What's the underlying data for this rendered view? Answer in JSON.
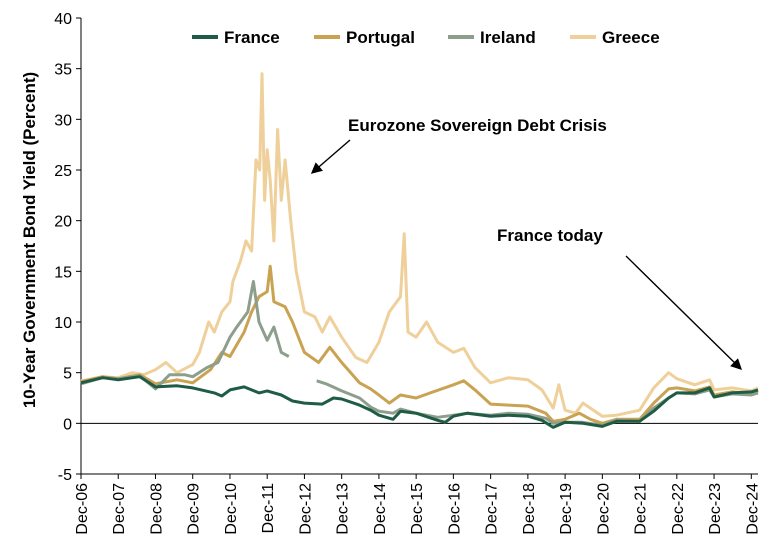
{
  "chart_data": {
    "type": "line",
    "title": "",
    "xlabel": "",
    "ylabel": "10-Year Government Bond Yield (Percent)",
    "ylim": [
      -5,
      40
    ],
    "yticks": [
      -5,
      0,
      5,
      10,
      15,
      20,
      25,
      30,
      35,
      40
    ],
    "xlim": [
      2006.92,
      2025.1
    ],
    "xticks": [
      {
        "label": "Dec-06",
        "x": 2006.92
      },
      {
        "label": "Dec-07",
        "x": 2007.92
      },
      {
        "label": "Dec-08",
        "x": 2008.92
      },
      {
        "label": "Dec-09",
        "x": 2009.92
      },
      {
        "label": "Dec-10",
        "x": 2010.92
      },
      {
        "label": "Dec-11",
        "x": 2011.92
      },
      {
        "label": "Dec-12",
        "x": 2012.92
      },
      {
        "label": "Dec-13",
        "x": 2013.92
      },
      {
        "label": "Dec-14",
        "x": 2014.92
      },
      {
        "label": "Dec-15",
        "x": 2015.92
      },
      {
        "label": "Dec-16",
        "x": 2016.92
      },
      {
        "label": "Dec-17",
        "x": 2017.92
      },
      {
        "label": "Dec-18",
        "x": 2018.92
      },
      {
        "label": "Dec-19",
        "x": 2019.92
      },
      {
        "label": "Dec-20",
        "x": 2020.92
      },
      {
        "label": "Dec-21",
        "x": 2021.92
      },
      {
        "label": "Dec-22",
        "x": 2022.92
      },
      {
        "label": "Dec-23",
        "x": 2023.92
      },
      {
        "label": "Dec-24",
        "x": 2024.92
      }
    ],
    "grid": false,
    "legend_position": "top-center",
    "series": [
      {
        "name": "France",
        "color": "#1f5c45",
        "points": [
          [
            2006.92,
            4.0
          ],
          [
            2007.5,
            4.5
          ],
          [
            2007.92,
            4.3
          ],
          [
            2008.5,
            4.6
          ],
          [
            2008.92,
            3.6
          ],
          [
            2009.5,
            3.7
          ],
          [
            2009.92,
            3.5
          ],
          [
            2010.5,
            3.0
          ],
          [
            2010.7,
            2.7
          ],
          [
            2010.92,
            3.3
          ],
          [
            2011.3,
            3.6
          ],
          [
            2011.7,
            3.0
          ],
          [
            2011.92,
            3.2
          ],
          [
            2012.3,
            2.8
          ],
          [
            2012.6,
            2.2
          ],
          [
            2012.92,
            2.0
          ],
          [
            2013.4,
            1.9
          ],
          [
            2013.7,
            2.5
          ],
          [
            2013.92,
            2.4
          ],
          [
            2014.4,
            1.8
          ],
          [
            2014.7,
            1.3
          ],
          [
            2014.92,
            0.8
          ],
          [
            2015.3,
            0.4
          ],
          [
            2015.5,
            1.2
          ],
          [
            2015.92,
            1.0
          ],
          [
            2016.5,
            0.3
          ],
          [
            2016.7,
            0.1
          ],
          [
            2016.92,
            0.7
          ],
          [
            2017.3,
            1.0
          ],
          [
            2017.92,
            0.7
          ],
          [
            2018.4,
            0.8
          ],
          [
            2018.92,
            0.7
          ],
          [
            2019.3,
            0.3
          ],
          [
            2019.6,
            -0.4
          ],
          [
            2019.92,
            0.1
          ],
          [
            2020.4,
            0.0
          ],
          [
            2020.92,
            -0.3
          ],
          [
            2021.3,
            0.2
          ],
          [
            2021.92,
            0.2
          ],
          [
            2022.3,
            1.2
          ],
          [
            2022.7,
            2.5
          ],
          [
            2022.92,
            3.0
          ],
          [
            2023.4,
            3.0
          ],
          [
            2023.8,
            3.5
          ],
          [
            2023.92,
            2.6
          ],
          [
            2024.4,
            3.0
          ],
          [
            2024.92,
            3.1
          ],
          [
            2025.1,
            3.3
          ]
        ]
      },
      {
        "name": "Portugal",
        "color": "#c9a252",
        "points": [
          [
            2006.92,
            4.1
          ],
          [
            2007.5,
            4.6
          ],
          [
            2007.92,
            4.4
          ],
          [
            2008.5,
            4.8
          ],
          [
            2008.92,
            3.9
          ],
          [
            2009.5,
            4.3
          ],
          [
            2009.92,
            4.0
          ],
          [
            2010.4,
            5.3
          ],
          [
            2010.7,
            7.0
          ],
          [
            2010.92,
            6.6
          ],
          [
            2011.3,
            9.0
          ],
          [
            2011.5,
            11.0
          ],
          [
            2011.7,
            12.5
          ],
          [
            2011.92,
            13.0
          ],
          [
            2012.0,
            15.5
          ],
          [
            2012.1,
            12.0
          ],
          [
            2012.4,
            11.5
          ],
          [
            2012.6,
            10.0
          ],
          [
            2012.92,
            7.0
          ],
          [
            2013.3,
            6.0
          ],
          [
            2013.6,
            7.5
          ],
          [
            2013.92,
            6.0
          ],
          [
            2014.4,
            4.0
          ],
          [
            2014.7,
            3.4
          ],
          [
            2014.92,
            2.8
          ],
          [
            2015.2,
            2.0
          ],
          [
            2015.5,
            2.8
          ],
          [
            2015.92,
            2.5
          ],
          [
            2016.3,
            3.0
          ],
          [
            2016.92,
            3.8
          ],
          [
            2017.2,
            4.2
          ],
          [
            2017.5,
            3.3
          ],
          [
            2017.92,
            1.9
          ],
          [
            2018.4,
            1.8
          ],
          [
            2018.92,
            1.7
          ],
          [
            2019.4,
            1.0
          ],
          [
            2019.6,
            0.2
          ],
          [
            2019.92,
            0.4
          ],
          [
            2020.3,
            1.0
          ],
          [
            2020.6,
            0.4
          ],
          [
            2020.92,
            0.0
          ],
          [
            2021.3,
            0.4
          ],
          [
            2021.92,
            0.4
          ],
          [
            2022.3,
            2.0
          ],
          [
            2022.7,
            3.4
          ],
          [
            2022.92,
            3.5
          ],
          [
            2023.4,
            3.2
          ],
          [
            2023.8,
            3.6
          ],
          [
            2023.92,
            2.8
          ],
          [
            2024.4,
            3.1
          ],
          [
            2024.92,
            2.9
          ],
          [
            2025.1,
            3.2
          ]
        ]
      },
      {
        "name": "Ireland",
        "color": "#8d9e8c",
        "points": [
          [
            2006.92,
            3.9
          ],
          [
            2007.5,
            4.5
          ],
          [
            2007.92,
            4.4
          ],
          [
            2008.5,
            4.7
          ],
          [
            2008.92,
            3.4
          ],
          [
            2009.3,
            4.8
          ],
          [
            2009.7,
            4.8
          ],
          [
            2009.92,
            4.6
          ],
          [
            2010.3,
            5.5
          ],
          [
            2010.6,
            6.0
          ],
          [
            2010.92,
            8.5
          ],
          [
            2011.1,
            9.5
          ],
          [
            2011.4,
            11.0
          ],
          [
            2011.55,
            14.0
          ],
          [
            2011.7,
            10.0
          ],
          [
            2011.92,
            8.2
          ],
          [
            2012.1,
            9.5
          ],
          [
            2012.3,
            7.0
          ],
          [
            2012.5,
            6.6
          ],
          null,
          [
            2013.25,
            4.2
          ],
          [
            2013.5,
            3.9
          ],
          [
            2013.92,
            3.2
          ],
          [
            2014.4,
            2.5
          ],
          [
            2014.7,
            1.6
          ],
          [
            2014.92,
            1.2
          ],
          [
            2015.3,
            1.0
          ],
          [
            2015.5,
            1.4
          ],
          [
            2015.92,
            1.0
          ],
          [
            2016.5,
            0.6
          ],
          [
            2016.92,
            0.8
          ],
          [
            2017.3,
            1.0
          ],
          [
            2017.92,
            0.8
          ],
          [
            2018.4,
            1.0
          ],
          [
            2018.92,
            0.9
          ],
          [
            2019.4,
            0.5
          ],
          [
            2019.6,
            0.0
          ],
          [
            2019.92,
            0.1
          ],
          [
            2020.4,
            0.1
          ],
          [
            2020.92,
            -0.2
          ],
          [
            2021.3,
            0.3
          ],
          [
            2021.92,
            0.2
          ],
          [
            2022.3,
            1.5
          ],
          [
            2022.7,
            2.5
          ],
          [
            2022.92,
            3.0
          ],
          [
            2023.4,
            2.9
          ],
          [
            2023.8,
            3.3
          ],
          [
            2023.92,
            2.6
          ],
          [
            2024.4,
            2.9
          ],
          [
            2024.92,
            2.8
          ],
          [
            2025.1,
            3.0
          ]
        ]
      },
      {
        "name": "Greece",
        "color": "#efd09a",
        "points": [
          [
            2006.92,
            4.2
          ],
          [
            2007.5,
            4.6
          ],
          [
            2007.92,
            4.5
          ],
          [
            2008.3,
            5.0
          ],
          [
            2008.6,
            4.8
          ],
          [
            2008.92,
            5.3
          ],
          [
            2009.2,
            6.0
          ],
          [
            2009.5,
            5.0
          ],
          [
            2009.92,
            5.8
          ],
          [
            2010.1,
            7.0
          ],
          [
            2010.35,
            10.0
          ],
          [
            2010.5,
            9.0
          ],
          [
            2010.7,
            11.0
          ],
          [
            2010.92,
            12.0
          ],
          [
            2011.0,
            14.0
          ],
          [
            2011.2,
            16.0
          ],
          [
            2011.35,
            18.0
          ],
          [
            2011.5,
            17.0
          ],
          [
            2011.62,
            26.0
          ],
          [
            2011.72,
            25.0
          ],
          [
            2011.78,
            34.5
          ],
          [
            2011.85,
            22.0
          ],
          [
            2011.92,
            27.0
          ],
          [
            2012.0,
            24.0
          ],
          [
            2012.1,
            18.0
          ],
          [
            2012.2,
            29.0
          ],
          [
            2012.3,
            22.0
          ],
          [
            2012.4,
            26.0
          ],
          [
            2012.55,
            20.0
          ],
          [
            2012.7,
            15.0
          ],
          [
            2012.92,
            11.0
          ],
          [
            2013.2,
            10.5
          ],
          [
            2013.4,
            9.0
          ],
          [
            2013.6,
            10.5
          ],
          [
            2013.92,
            8.5
          ],
          [
            2014.3,
            6.5
          ],
          [
            2014.6,
            6.0
          ],
          [
            2014.92,
            8.0
          ],
          [
            2015.2,
            11.0
          ],
          [
            2015.5,
            12.5
          ],
          [
            2015.6,
            18.7
          ],
          [
            2015.7,
            9.0
          ],
          [
            2015.92,
            8.5
          ],
          [
            2016.2,
            10.0
          ],
          [
            2016.5,
            8.0
          ],
          [
            2016.92,
            7.0
          ],
          [
            2017.2,
            7.4
          ],
          [
            2017.5,
            5.5
          ],
          [
            2017.92,
            4.0
          ],
          [
            2018.4,
            4.5
          ],
          [
            2018.92,
            4.3
          ],
          [
            2019.3,
            3.3
          ],
          [
            2019.6,
            1.5
          ],
          [
            2019.75,
            3.8
          ],
          [
            2019.92,
            1.3
          ],
          [
            2020.2,
            1.0
          ],
          [
            2020.4,
            2.0
          ],
          [
            2020.92,
            0.7
          ],
          [
            2021.3,
            0.8
          ],
          [
            2021.92,
            1.3
          ],
          [
            2022.3,
            3.5
          ],
          [
            2022.7,
            5.0
          ],
          [
            2022.92,
            4.4
          ],
          [
            2023.4,
            3.8
          ],
          [
            2023.8,
            4.3
          ],
          [
            2023.92,
            3.3
          ],
          [
            2024.4,
            3.5
          ],
          [
            2024.92,
            3.2
          ],
          [
            2025.1,
            3.5
          ]
        ]
      }
    ],
    "annotations": [
      {
        "text": "Eurozone Sovereign Debt Crisis"
      },
      {
        "text": "France today"
      }
    ]
  }
}
